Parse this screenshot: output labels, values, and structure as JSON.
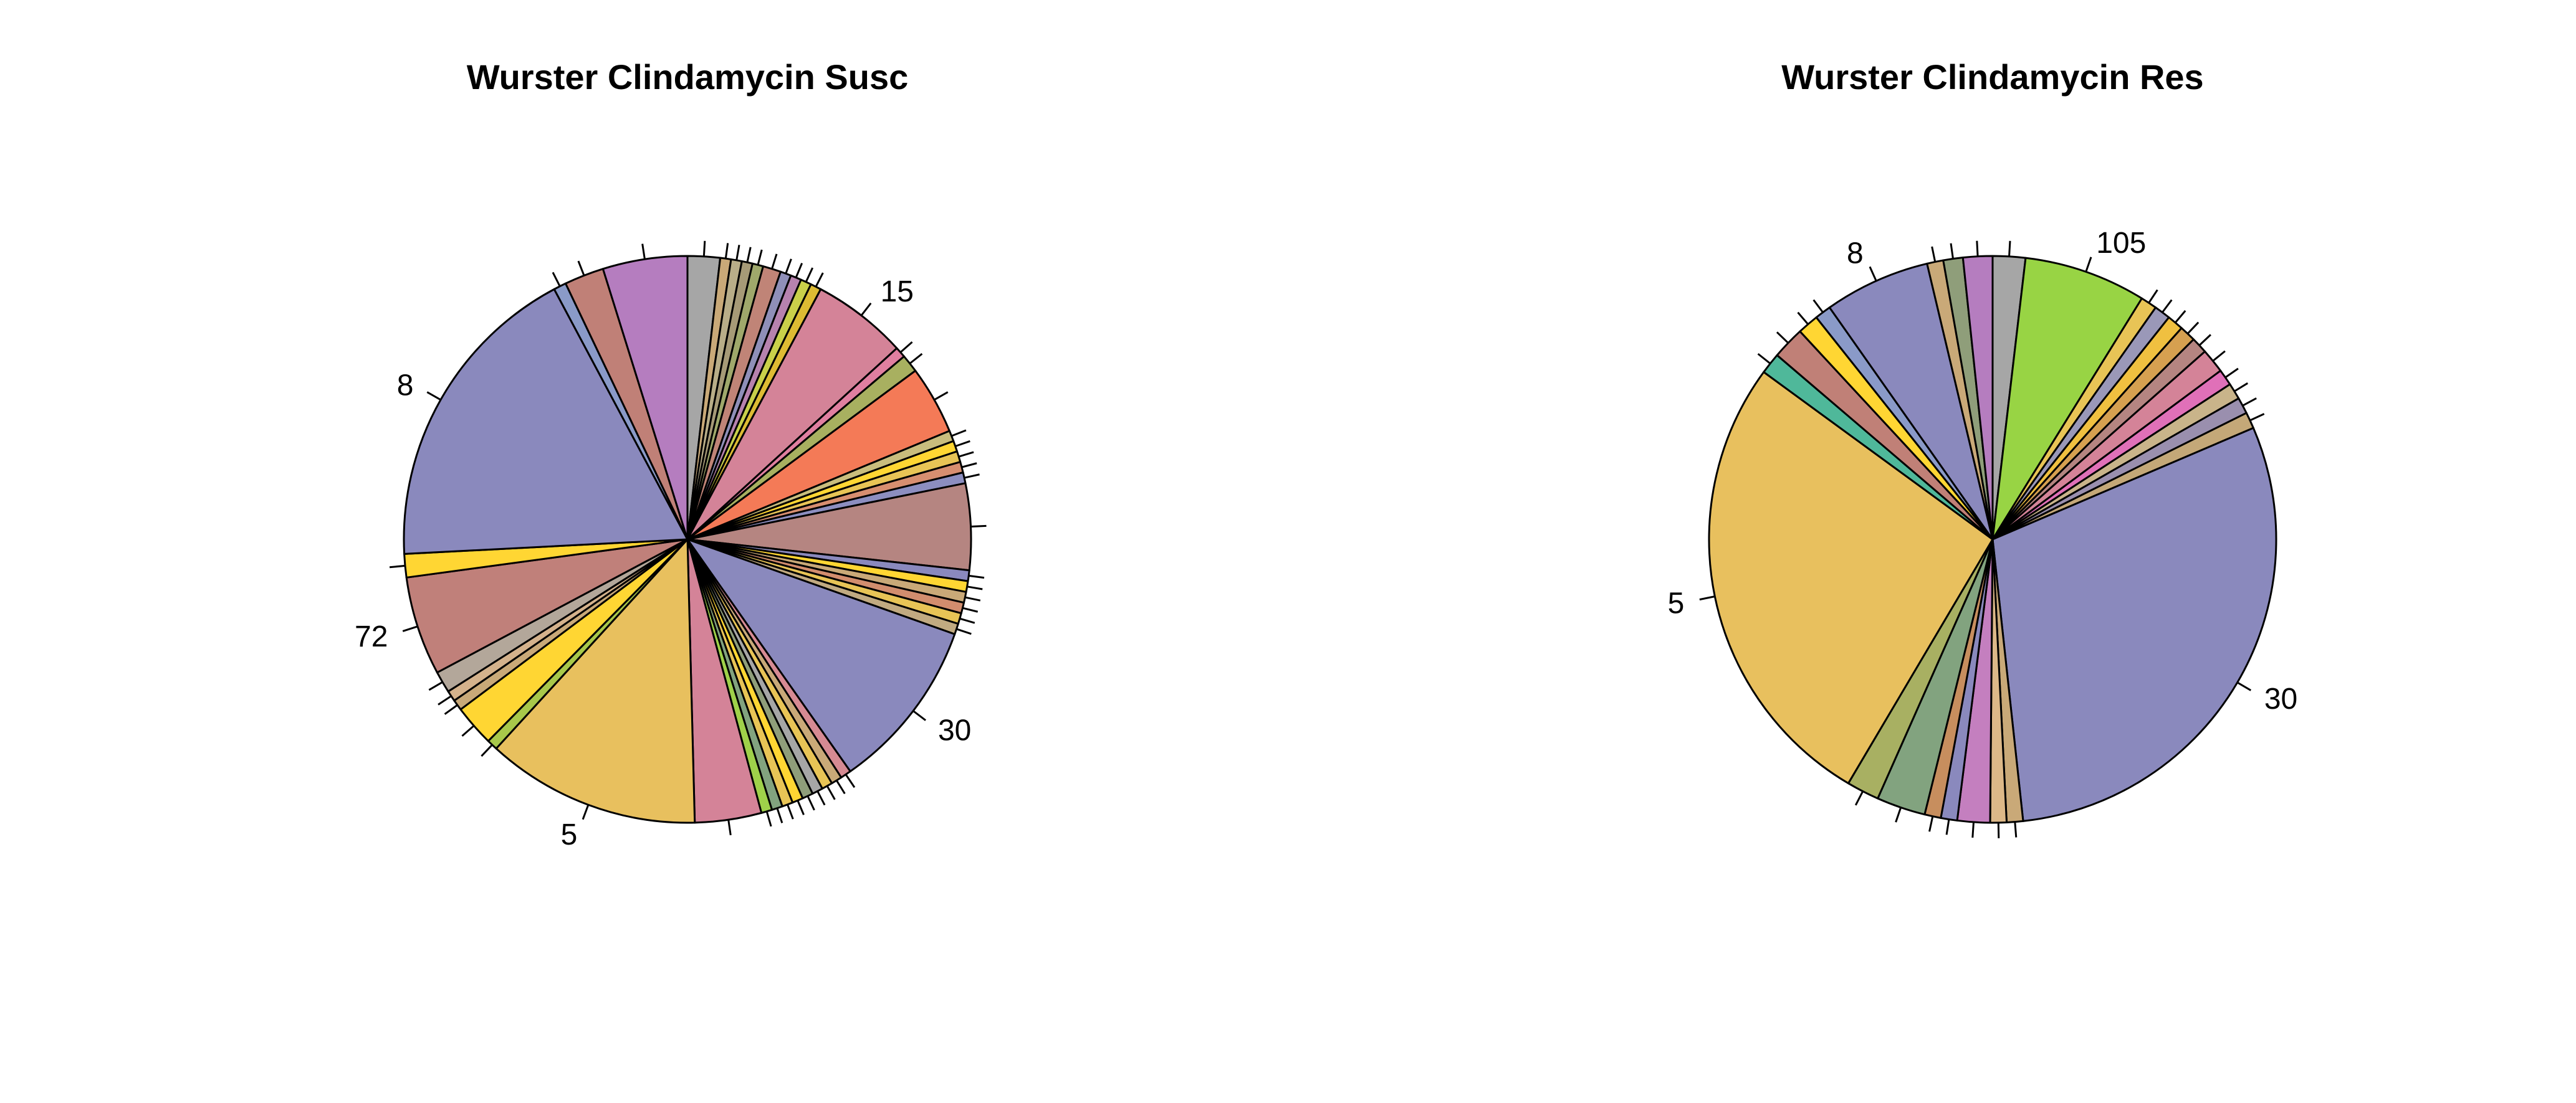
{
  "chart_data": [
    {
      "type": "pie",
      "title": "Wurster Clindamycin Susc",
      "start_angle_deg": 90,
      "direction": "clockwise",
      "slices": [
        {
          "label": "",
          "value": 1.8,
          "color": "#a6a6a6"
        },
        {
          "label": "",
          "value": 0.6,
          "color": "#c9a978"
        },
        {
          "label": "",
          "value": 0.6,
          "color": "#b8ad88"
        },
        {
          "label": "",
          "value": 0.6,
          "color": "#a69a77"
        },
        {
          "label": "",
          "value": 0.6,
          "color": "#9fa86b"
        },
        {
          "label": "",
          "value": 1.0,
          "color": "#c08477"
        },
        {
          "label": "",
          "value": 0.6,
          "color": "#8f8fb8"
        },
        {
          "label": "",
          "value": 0.6,
          "color": "#b782ae"
        },
        {
          "label": "",
          "value": 0.6,
          "color": "#c9d04a"
        },
        {
          "label": "",
          "value": 0.6,
          "color": "#ddbb33"
        },
        {
          "label": "15",
          "value": 5.3,
          "color": "#d48398"
        },
        {
          "label": "",
          "value": 0.6,
          "color": "#e07fa0"
        },
        {
          "label": "",
          "value": 1.0,
          "color": "#a8b060"
        },
        {
          "label": "",
          "value": 3.8,
          "color": "#f47a57"
        },
        {
          "label": "",
          "value": 0.6,
          "color": "#c9bd7d"
        },
        {
          "label": "",
          "value": 0.6,
          "color": "#ffd633"
        },
        {
          "label": "",
          "value": 0.6,
          "color": "#e8c456"
        },
        {
          "label": "",
          "value": 0.6,
          "color": "#d78e70"
        },
        {
          "label": "",
          "value": 0.6,
          "color": "#8c8ec0"
        },
        {
          "label": "",
          "value": 4.8,
          "color": "#b58581"
        },
        {
          "label": "",
          "value": 0.6,
          "color": "#8a89bd"
        },
        {
          "label": "",
          "value": 0.6,
          "color": "#ffd633"
        },
        {
          "label": "",
          "value": 0.6,
          "color": "#c9a978"
        },
        {
          "label": "",
          "value": 0.6,
          "color": "#d28d6e"
        },
        {
          "label": "",
          "value": 0.6,
          "color": "#e8c456"
        },
        {
          "label": "",
          "value": 0.6,
          "color": "#c1aa81"
        },
        {
          "label": "30",
          "value": 9.6,
          "color": "#8a89bd"
        },
        {
          "label": "",
          "value": 0.6,
          "color": "#d68a93"
        },
        {
          "label": "",
          "value": 0.6,
          "color": "#c9a978"
        },
        {
          "label": "",
          "value": 0.6,
          "color": "#e8c456"
        },
        {
          "label": "",
          "value": 0.6,
          "color": "#a6a6a6"
        },
        {
          "label": "",
          "value": 0.6,
          "color": "#8f9e7a"
        },
        {
          "label": "",
          "value": 0.6,
          "color": "#ffd633"
        },
        {
          "label": "",
          "value": 0.6,
          "color": "#e8c456"
        },
        {
          "label": "",
          "value": 0.6,
          "color": "#82a37f"
        },
        {
          "label": "",
          "value": 0.6,
          "color": "#9fd14a"
        },
        {
          "label": "",
          "value": 3.7,
          "color": "#d48398"
        },
        {
          "label": "5",
          "value": 11.9,
          "color": "#e8c05e"
        },
        {
          "label": "",
          "value": 0.6,
          "color": "#a8c84a"
        },
        {
          "label": "",
          "value": 2.3,
          "color": "#ffd633"
        },
        {
          "label": "",
          "value": 0.6,
          "color": "#c9a978"
        },
        {
          "label": "",
          "value": 0.6,
          "color": "#d4b28c"
        },
        {
          "label": "",
          "value": 1.2,
          "color": "#b3a79a"
        },
        {
          "label": "72",
          "value": 5.5,
          "color": "#c0807a"
        },
        {
          "label": "",
          "value": 1.3,
          "color": "#ffd633"
        },
        {
          "label": "8",
          "value": 17.6,
          "color": "#8a89bd"
        },
        {
          "label": "",
          "value": 0.7,
          "color": "#8a9ac8"
        },
        {
          "label": "",
          "value": 2.2,
          "color": "#c08077"
        },
        {
          "label": "",
          "value": 4.7,
          "color": "#b57dbf"
        }
      ]
    },
    {
      "type": "pie",
      "title": "Wurster Clindamycin Res",
      "start_angle_deg": 90,
      "direction": "clockwise",
      "slices": [
        {
          "label": "",
          "value": 2.0,
          "color": "#a6a6a6"
        },
        {
          "label": "105",
          "value": 7.5,
          "color": "#98d444"
        },
        {
          "label": "",
          "value": 1.0,
          "color": "#e8c456"
        },
        {
          "label": "",
          "value": 1.0,
          "color": "#9a98b8"
        },
        {
          "label": "",
          "value": 1.0,
          "color": "#f0c040"
        },
        {
          "label": "",
          "value": 1.0,
          "color": "#d6a050"
        },
        {
          "label": "",
          "value": 1.0,
          "color": "#b58581"
        },
        {
          "label": "",
          "value": 1.5,
          "color": "#d48398"
        },
        {
          "label": "",
          "value": 1.0,
          "color": "#e070b8"
        },
        {
          "label": "",
          "value": 1.0,
          "color": "#c9b48a"
        },
        {
          "label": "",
          "value": 1.0,
          "color": "#9a8fae"
        },
        {
          "label": "",
          "value": 1.0,
          "color": "#c4a878"
        },
        {
          "label": "30",
          "value": 32.0,
          "color": "#8a89bd"
        },
        {
          "label": "",
          "value": 1.0,
          "color": "#c9a978"
        },
        {
          "label": "",
          "value": 1.0,
          "color": "#dcb888"
        },
        {
          "label": "",
          "value": 2.0,
          "color": "#c47fbf"
        },
        {
          "label": "",
          "value": 1.0,
          "color": "#8a89bd"
        },
        {
          "label": "",
          "value": 1.0,
          "color": "#c78e5e"
        },
        {
          "label": "",
          "value": 3.0,
          "color": "#82a37f"
        },
        {
          "label": "",
          "value": 2.0,
          "color": "#a8b062"
        },
        {
          "label": "5",
          "value": 28.6,
          "color": "#e8c05e"
        },
        {
          "label": "",
          "value": 1.3,
          "color": "#4fb89a"
        },
        {
          "label": "",
          "value": 2.0,
          "color": "#c08077"
        },
        {
          "label": "",
          "value": 1.3,
          "color": "#ffd633"
        },
        {
          "label": "",
          "value": 1.0,
          "color": "#8a9ac8"
        },
        {
          "label": "8",
          "value": 6.5,
          "color": "#8a89bd"
        },
        {
          "label": "",
          "value": 1.0,
          "color": "#c9a978"
        },
        {
          "label": "",
          "value": 1.2,
          "color": "#8f9e7a"
        },
        {
          "label": "",
          "value": 1.8,
          "color": "#b57dbf"
        }
      ]
    }
  ]
}
